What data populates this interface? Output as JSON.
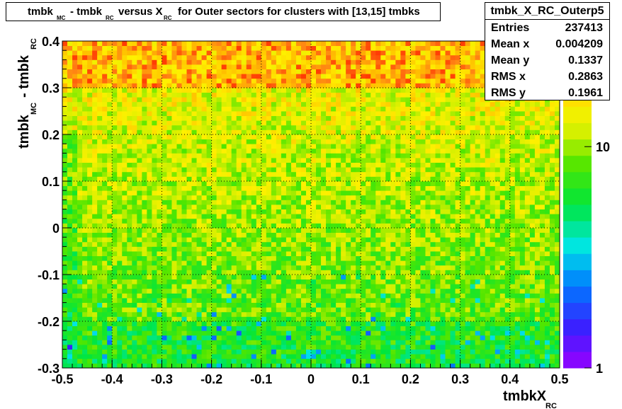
{
  "title": {
    "parts": [
      "tmbk",
      "MC",
      "- tmbk",
      "RC",
      "versus X",
      "RC",
      "for Outer sectors for clusters with [13,15] tmbks"
    ]
  },
  "stats": {
    "name": "tmbk_X_RC_Outerp5",
    "rows": [
      {
        "label": "Entries",
        "value": "237413"
      },
      {
        "label": "Mean x",
        "value": "0.004209"
      },
      {
        "label": "Mean y",
        "value": "0.1337"
      },
      {
        "label": "RMS x",
        "value": "0.2863"
      },
      {
        "label": "RMS y",
        "value": "0.1961"
      }
    ]
  },
  "chart_data": {
    "type": "heatmap",
    "x_axis": {
      "label_main": "tmbkX",
      "label_sub": "RC",
      "range": [
        -0.5,
        0.5
      ],
      "ticks": [
        "-0.5",
        "-0.4",
        "-0.3",
        "-0.2",
        "-0.1",
        "0",
        "0.1",
        "0.2",
        "0.3",
        "0.4",
        "0.5"
      ]
    },
    "y_axis": {
      "label_parts": [
        "tmbk",
        "MC",
        "- tmbk",
        "RC"
      ],
      "range": [
        -0.3,
        0.4
      ],
      "ticks": [
        "-0.3",
        "-0.2",
        "-0.1",
        "0",
        "0.1",
        "0.2",
        "0.3",
        "0.4"
      ]
    },
    "z_axis": {
      "scale": "log",
      "range": [
        1,
        30
      ],
      "ticks": [
        "1",
        "10"
      ]
    },
    "grid": true,
    "bins": {
      "nx": 100,
      "ny": 70
    },
    "colors": {
      "frame": "#000000"
    }
  }
}
